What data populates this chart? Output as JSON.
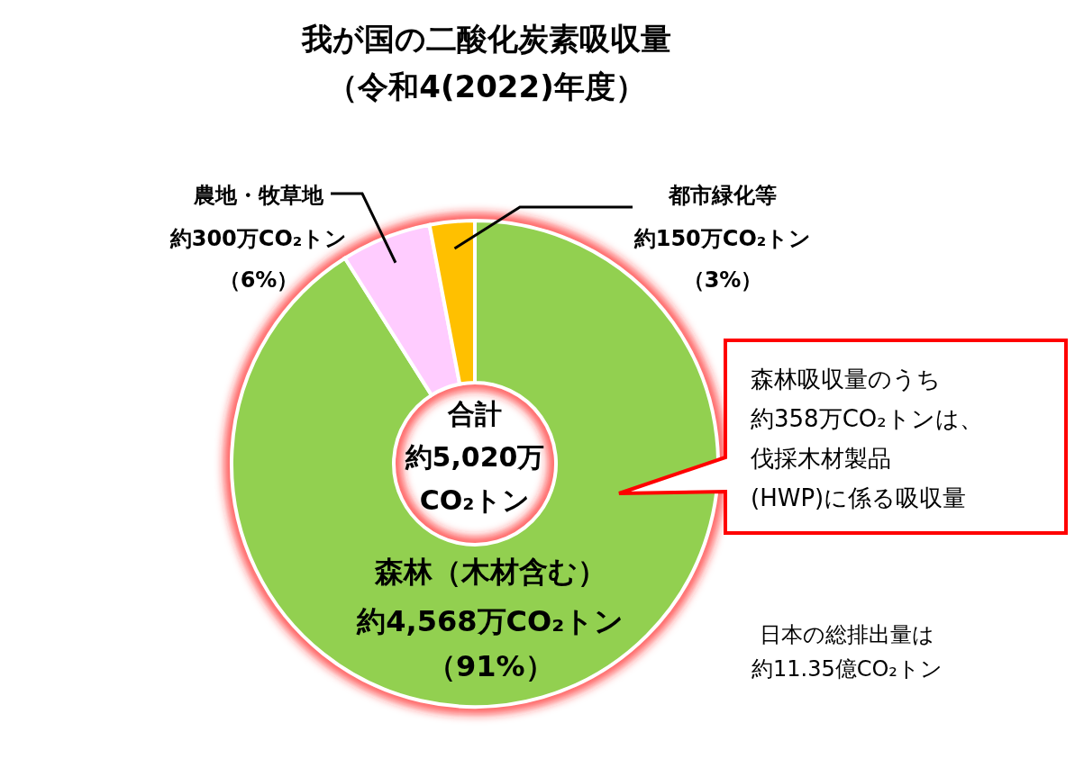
{
  "chart_data": {
    "type": "donut",
    "title": "我が国の二酸化炭素吸収量",
    "subtitle": "（令和4(2022)年度）",
    "categories": [
      "森林（木材含む）",
      "農地・牧草地",
      "都市緑化等"
    ],
    "values": [
      4568,
      300,
      150
    ],
    "colors": [
      "#92d050",
      "#ffccff",
      "#ffc000"
    ],
    "value_labels": [
      "約4,568万CO₂トン（91%）",
      "約300万CO₂トン（6%）",
      "約150万CO₂トン（3%）"
    ],
    "annotations": [
      "合計",
      "約5,020万",
      "CO₂トン",
      "森林吸収量のうち",
      "約358万CO₂トンは、",
      "伐採木材製品",
      "(HWP)に係る吸収量",
      "日本の総排出量は",
      "約11.35億CO₂トン"
    ]
  }
}
